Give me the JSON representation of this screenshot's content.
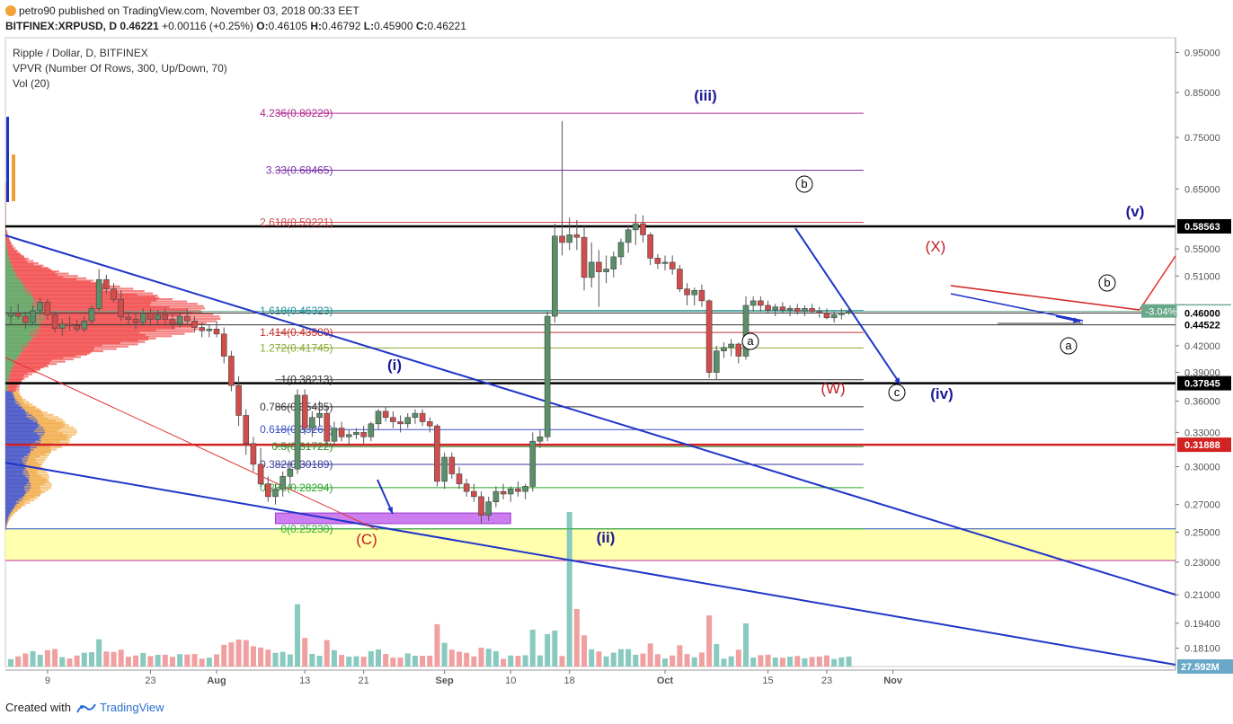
{
  "header": {
    "author": "petro90",
    "published": "published on TradingView.com, November 03, 2018 00:33 EET",
    "symbol": "BITFINEX:XRPUSD, D",
    "last": "0.46221",
    "change": "+0.00116 (+0.25%)",
    "o_label": "O:",
    "o": "0.46105",
    "h_label": "H:",
    "h": "0.46792",
    "l_label": "L:",
    "l": "0.45900",
    "c_label": "C:",
    "c": "0.46221"
  },
  "legend": {
    "title": "Ripple / Dollar, D, BITFINEX",
    "vpvr": "VPVR (Number Of Rows, 300, Up/Down, 70)",
    "vol": "Vol (20)"
  },
  "footer": {
    "created_with": "Created with",
    "brand": "TradingView"
  },
  "colors": {
    "up": "#5a8f69",
    "down": "#d24c4c",
    "vol_up": "#88c9c0",
    "vol_down": "#f0a0a0",
    "trend": "#1f35c8",
    "bg": "#ffffff"
  },
  "chart_data": {
    "type": "candlestick",
    "y_scale": "log",
    "ylim": [
      0.17,
      0.99
    ],
    "y_ticks": [
      "0.95000",
      "0.85000",
      "0.75000",
      "0.65000",
      "0.55000",
      "0.51000",
      "0.46000",
      "0.42000",
      "0.39000",
      "0.36000",
      "0.33000",
      "0.30000",
      "0.27000",
      "0.25000",
      "0.23000",
      "0.21000",
      "0.19400",
      "0.18100"
    ],
    "x_ticks": [
      {
        "label": "9",
        "date": "2018-07-09"
      },
      {
        "label": "23",
        "date": "2018-07-23"
      },
      {
        "label": "Aug",
        "date": "2018-08-01"
      },
      {
        "label": "13",
        "date": "2018-08-13"
      },
      {
        "label": "21",
        "date": "2018-08-21"
      },
      {
        "label": "Sep",
        "date": "2018-09-01"
      },
      {
        "label": "10",
        "date": "2018-09-10"
      },
      {
        "label": "18",
        "date": "2018-09-18"
      },
      {
        "label": "Oct",
        "date": "2018-10-01"
      },
      {
        "label": "15",
        "date": "2018-10-15"
      },
      {
        "label": "23",
        "date": "2018-10-23"
      },
      {
        "label": "Nov",
        "date": "2018-11-01"
      }
    ],
    "candles_daily_approx": {
      "start_date": "2018-07-04",
      "ohlc": [
        [
          0.456,
          0.468,
          0.445,
          0.46
        ],
        [
          0.46,
          0.472,
          0.452,
          0.456
        ],
        [
          0.456,
          0.462,
          0.44,
          0.448
        ],
        [
          0.448,
          0.47,
          0.445,
          0.463
        ],
        [
          0.463,
          0.48,
          0.458,
          0.474
        ],
        [
          0.474,
          0.478,
          0.452,
          0.458
        ],
        [
          0.458,
          0.462,
          0.436,
          0.441
        ],
        [
          0.441,
          0.452,
          0.432,
          0.446
        ],
        [
          0.446,
          0.456,
          0.438,
          0.444
        ],
        [
          0.444,
          0.452,
          0.436,
          0.44
        ],
        [
          0.44,
          0.456,
          0.436,
          0.45
        ],
        [
          0.45,
          0.47,
          0.446,
          0.466
        ],
        [
          0.466,
          0.52,
          0.462,
          0.505
        ],
        [
          0.505,
          0.512,
          0.486,
          0.492
        ],
        [
          0.492,
          0.5,
          0.474,
          0.478
        ],
        [
          0.478,
          0.49,
          0.45,
          0.455
        ],
        [
          0.455,
          0.462,
          0.444,
          0.452
        ],
        [
          0.452,
          0.46,
          0.44,
          0.448
        ],
        [
          0.448,
          0.466,
          0.444,
          0.46
        ],
        [
          0.46,
          0.466,
          0.444,
          0.452
        ],
        [
          0.452,
          0.464,
          0.446,
          0.458
        ],
        [
          0.458,
          0.466,
          0.446,
          0.452
        ],
        [
          0.452,
          0.46,
          0.44,
          0.446
        ],
        [
          0.446,
          0.462,
          0.442,
          0.456
        ],
        [
          0.456,
          0.466,
          0.446,
          0.45
        ],
        [
          0.45,
          0.456,
          0.436,
          0.442
        ],
        [
          0.442,
          0.448,
          0.43,
          0.438
        ],
        [
          0.438,
          0.446,
          0.43,
          0.44
        ],
        [
          0.44,
          0.45,
          0.43,
          0.434
        ],
        [
          0.434,
          0.442,
          0.4,
          0.408
        ],
        [
          0.408,
          0.414,
          0.37,
          0.376
        ],
        [
          0.376,
          0.386,
          0.336,
          0.346
        ],
        [
          0.346,
          0.352,
          0.31,
          0.32
        ],
        [
          0.32,
          0.326,
          0.296,
          0.302
        ],
        [
          0.302,
          0.316,
          0.284,
          0.286
        ],
        [
          0.286,
          0.292,
          0.272,
          0.276
        ],
        [
          0.276,
          0.286,
          0.27,
          0.282
        ],
        [
          0.282,
          0.296,
          0.276,
          0.292
        ],
        [
          0.292,
          0.304,
          0.282,
          0.298
        ],
        [
          0.298,
          0.372,
          0.294,
          0.366
        ],
        [
          0.366,
          0.372,
          0.328,
          0.334
        ],
        [
          0.334,
          0.35,
          0.326,
          0.344
        ],
        [
          0.344,
          0.36,
          0.336,
          0.348
        ],
        [
          0.348,
          0.356,
          0.318,
          0.322
        ],
        [
          0.322,
          0.34,
          0.318,
          0.334
        ],
        [
          0.334,
          0.34,
          0.322,
          0.326
        ],
        [
          0.326,
          0.332,
          0.318,
          0.328
        ],
        [
          0.328,
          0.334,
          0.324,
          0.33
        ],
        [
          0.33,
          0.336,
          0.32,
          0.326
        ],
        [
          0.326,
          0.34,
          0.322,
          0.338
        ],
        [
          0.338,
          0.352,
          0.332,
          0.35
        ],
        [
          0.35,
          0.354,
          0.34,
          0.344
        ],
        [
          0.344,
          0.35,
          0.334,
          0.34
        ],
        [
          0.34,
          0.346,
          0.33,
          0.338
        ],
        [
          0.338,
          0.348,
          0.334,
          0.344
        ],
        [
          0.344,
          0.352,
          0.338,
          0.348
        ],
        [
          0.348,
          0.352,
          0.336,
          0.34
        ],
        [
          0.34,
          0.344,
          0.33,
          0.336
        ],
        [
          0.336,
          0.338,
          0.284,
          0.288
        ],
        [
          0.288,
          0.312,
          0.282,
          0.308
        ],
        [
          0.308,
          0.312,
          0.29,
          0.294
        ],
        [
          0.294,
          0.3,
          0.282,
          0.286
        ],
        [
          0.286,
          0.29,
          0.276,
          0.28
        ],
        [
          0.28,
          0.286,
          0.272,
          0.276
        ],
        [
          0.276,
          0.28,
          0.256,
          0.262
        ],
        [
          0.262,
          0.276,
          0.258,
          0.272
        ],
        [
          0.272,
          0.284,
          0.268,
          0.28
        ],
        [
          0.28,
          0.286,
          0.274,
          0.278
        ],
        [
          0.278,
          0.284,
          0.272,
          0.282
        ],
        [
          0.282,
          0.288,
          0.276,
          0.28
        ],
        [
          0.28,
          0.286,
          0.274,
          0.284
        ],
        [
          0.284,
          0.33,
          0.28,
          0.322
        ],
        [
          0.322,
          0.332,
          0.316,
          0.326
        ],
        [
          0.326,
          0.462,
          0.322,
          0.456
        ],
        [
          0.456,
          0.59,
          0.448,
          0.57
        ],
        [
          0.57,
          0.785,
          0.54,
          0.56
        ],
        [
          0.56,
          0.6,
          0.548,
          0.572
        ],
        [
          0.572,
          0.596,
          0.548,
          0.568
        ],
        [
          0.568,
          0.588,
          0.49,
          0.508
        ],
        [
          0.508,
          0.56,
          0.494,
          0.53
        ],
        [
          0.53,
          0.548,
          0.468,
          0.516
        ],
        [
          0.516,
          0.54,
          0.5,
          0.52
        ],
        [
          0.52,
          0.546,
          0.508,
          0.538
        ],
        [
          0.538,
          0.566,
          0.526,
          0.56
        ],
        [
          0.56,
          0.588,
          0.544,
          0.58
        ],
        [
          0.58,
          0.606,
          0.556,
          0.59
        ],
        [
          0.59,
          0.604,
          0.56,
          0.572
        ],
        [
          0.572,
          0.576,
          0.526,
          0.536
        ],
        [
          0.536,
          0.542,
          0.52,
          0.528
        ],
        [
          0.528,
          0.54,
          0.518,
          0.53
        ],
        [
          0.53,
          0.54,
          0.512,
          0.52
        ],
        [
          0.52,
          0.526,
          0.488,
          0.492
        ],
        [
          0.492,
          0.5,
          0.47,
          0.484
        ],
        [
          0.484,
          0.494,
          0.47,
          0.49
        ],
        [
          0.49,
          0.498,
          0.468,
          0.476
        ],
        [
          0.476,
          0.478,
          0.384,
          0.39
        ],
        [
          0.39,
          0.42,
          0.382,
          0.414
        ],
        [
          0.414,
          0.424,
          0.406,
          0.418
        ],
        [
          0.418,
          0.428,
          0.408,
          0.422
        ],
        [
          0.422,
          0.424,
          0.4,
          0.408
        ],
        [
          0.408,
          0.482,
          0.404,
          0.47
        ],
        [
          0.47,
          0.482,
          0.462,
          0.476
        ],
        [
          0.476,
          0.482,
          0.462,
          0.47
        ],
        [
          0.47,
          0.476,
          0.46,
          0.464
        ],
        [
          0.464,
          0.472,
          0.456,
          0.468
        ],
        [
          0.468,
          0.474,
          0.46,
          0.464
        ],
        [
          0.464,
          0.47,
          0.456,
          0.466
        ],
        [
          0.466,
          0.472,
          0.458,
          0.462
        ],
        [
          0.462,
          0.47,
          0.456,
          0.466
        ],
        [
          0.466,
          0.472,
          0.46,
          0.462
        ],
        [
          0.462,
          0.468,
          0.454,
          0.46
        ],
        [
          0.46,
          0.466,
          0.452,
          0.454
        ],
        [
          0.454,
          0.462,
          0.448,
          0.458
        ],
        [
          0.458,
          0.466,
          0.452,
          0.46
        ],
        [
          0.46,
          0.468,
          0.458,
          0.462
        ]
      ]
    },
    "horizontal_levels": [
      {
        "price": 0.58563,
        "label": "0.58563",
        "color": "#000000"
      },
      {
        "price": 0.46221,
        "label": "0.46221",
        "color": "#6aa88a"
      },
      {
        "price": 0.46,
        "label": "0.46000",
        "color": "#333333"
      },
      {
        "price": 0.44522,
        "label": "0.44522",
        "color": "#333333"
      },
      {
        "price": 0.37845,
        "label": "0.37845",
        "color": "#000000"
      },
      {
        "price": 0.31888,
        "label": "0.31888",
        "color": "#d22222"
      }
    ],
    "fib_levels": [
      {
        "label": "4.236(0.80229)",
        "price": 0.80229,
        "color": "#b0288c"
      },
      {
        "label": "3.33(0.68465)",
        "price": 0.68465,
        "color": "#7a2fa8"
      },
      {
        "label": "2.618(0.59221)",
        "price": 0.59221,
        "color": "#d04a4a"
      },
      {
        "label": "1.618(0.46323)",
        "price": 0.46323,
        "color": "#1f8f9f"
      },
      {
        "label": "1.414(0.43580)",
        "price": 0.4358,
        "color": "#c03030"
      },
      {
        "label": "1.272(0.41745)",
        "price": 0.41745,
        "color": "#8aa830"
      },
      {
        "label": "1(0.38213)",
        "price": 0.38213,
        "color": "#333333"
      },
      {
        "label": "0.786(0.35435)",
        "price": 0.35435,
        "color": "#333333"
      },
      {
        "label": "0.618(0.33261)",
        "price": 0.33261,
        "color": "#3a50c8"
      },
      {
        "label": "0.5(0.31722)",
        "price": 0.31722,
        "color": "#2a8a2a"
      },
      {
        "label": "0.382(0.30189)",
        "price": 0.30189,
        "color": "#3a3a9a"
      },
      {
        "label": "0.236(0.28294)",
        "price": 0.28294,
        "color": "#2aa82a"
      },
      {
        "label": "0(0.25230)",
        "price": 0.2523,
        "color": "#30b030"
      }
    ],
    "wave_labels": [
      {
        "text": "(iii)",
        "color": "#1a1a9a"
      },
      {
        "text": "(i)",
        "color": "#1a1a9a"
      },
      {
        "text": "(ii)",
        "color": "#1a1a9a"
      },
      {
        "text": "(iv)",
        "color": "#1a1a9a"
      },
      {
        "text": "(v)",
        "color": "#1a1a9a"
      },
      {
        "text": "(C)",
        "color": "#c02020"
      },
      {
        "text": "(W)",
        "color": "#c02020"
      },
      {
        "text": "(X)",
        "color": "#c02020"
      },
      {
        "text": "b",
        "color": "#000000"
      },
      {
        "text": "a",
        "color": "#000000"
      },
      {
        "text": "c",
        "color": "#000000"
      },
      {
        "text": "a",
        "color": "#000000"
      },
      {
        "text": "b",
        "color": "#000000"
      }
    ],
    "change_badge": "-3.04%",
    "volume_last": "27.592M"
  }
}
